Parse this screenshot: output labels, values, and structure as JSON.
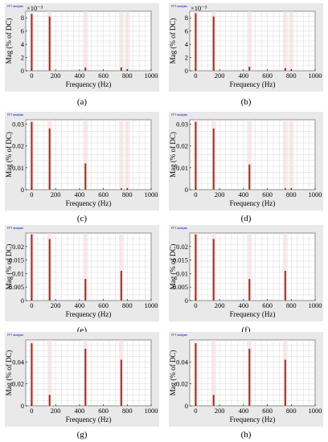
{
  "panel_title": "FFT analysis",
  "chart_data": [
    {
      "type": "bar",
      "caption": "(a)",
      "title": "",
      "xlabel": "Frequency (Hz)",
      "ylabel": "Mag (% of DC)",
      "xlim": [
        -50,
        1000
      ],
      "ylim": [
        0,
        0.009
      ],
      "y_exponent": "×10⁻³",
      "xticks": [
        0,
        200,
        400,
        600,
        800,
        1000
      ],
      "yticks": [
        {
          "v": 0,
          "label": "0"
        },
        {
          "v": 0.002,
          "label": "2"
        },
        {
          "v": 0.004,
          "label": "4"
        },
        {
          "v": 0.006,
          "label": "6"
        },
        {
          "v": 0.008,
          "label": "8"
        }
      ],
      "grid": true,
      "bar_color": "#a52a1a",
      "x": [
        0,
        150,
        450,
        750,
        800
      ],
      "values": [
        0.0086,
        0.0082,
        0.0005,
        0.0005,
        0.0002
      ]
    },
    {
      "type": "bar",
      "caption": "(b)",
      "title": "",
      "xlabel": "Frequency (Hz)",
      "ylabel": "Mag (% of DC)",
      "xlim": [
        -50,
        1000
      ],
      "ylim": [
        0,
        0.009
      ],
      "y_exponent": "×10⁻³",
      "xticks": [
        0,
        200,
        400,
        600,
        800,
        1000
      ],
      "yticks": [
        {
          "v": 0,
          "label": "0"
        },
        {
          "v": 0.002,
          "label": "2"
        },
        {
          "v": 0.004,
          "label": "4"
        },
        {
          "v": 0.006,
          "label": "6"
        },
        {
          "v": 0.008,
          "label": "8"
        }
      ],
      "grid": true,
      "bar_color": "#a52a1a",
      "x": [
        0,
        150,
        450,
        750,
        800
      ],
      "values": [
        0.0087,
        0.0082,
        0.0006,
        0.0004,
        0.0002
      ]
    },
    {
      "type": "bar",
      "caption": "(c)",
      "title": "",
      "xlabel": "Frequency (Hz)",
      "ylabel": "Mag (% of DC)",
      "xlim": [
        -50,
        1000
      ],
      "ylim": [
        0,
        0.032
      ],
      "xticks": [
        0,
        200,
        400,
        600,
        800,
        1000
      ],
      "yticks": [
        {
          "v": 0,
          "label": "0"
        },
        {
          "v": 0.01,
          "label": "0.01"
        },
        {
          "v": 0.02,
          "label": "0.02"
        },
        {
          "v": 0.03,
          "label": "0.03"
        }
      ],
      "grid": true,
      "bar_color": "#a52a1a",
      "x": [
        0,
        150,
        450,
        750,
        800
      ],
      "values": [
        0.031,
        0.028,
        0.012,
        0.0006,
        0.0005
      ]
    },
    {
      "type": "bar",
      "caption": "(d)",
      "title": "",
      "xlabel": "Frequency (Hz)",
      "ylabel": "Mag (% of DC)",
      "xlim": [
        -50,
        1000
      ],
      "ylim": [
        0,
        0.032
      ],
      "xticks": [
        0,
        200,
        400,
        600,
        800,
        1000
      ],
      "yticks": [
        {
          "v": 0,
          "label": "0"
        },
        {
          "v": 0.01,
          "label": "0.01"
        },
        {
          "v": 0.02,
          "label": "0.02"
        },
        {
          "v": 0.03,
          "label": "0.03"
        }
      ],
      "grid": true,
      "bar_color": "#a52a1a",
      "x": [
        0,
        150,
        450,
        750,
        800
      ],
      "values": [
        0.031,
        0.028,
        0.0115,
        0.0006,
        0.0005
      ]
    },
    {
      "type": "bar",
      "caption": "(e)",
      "title": "",
      "xlabel": "Frequency (Hz)",
      "ylabel": "Mag (% of DC)",
      "xlim": [
        -50,
        1000
      ],
      "ylim": [
        0,
        0.025
      ],
      "xticks": [
        0,
        200,
        400,
        600,
        800,
        1000
      ],
      "yticks": [
        {
          "v": 0,
          "label": "0"
        },
        {
          "v": 0.005,
          "label": "0.005"
        },
        {
          "v": 0.01,
          "label": "0.01"
        },
        {
          "v": 0.015,
          "label": "0.015"
        },
        {
          "v": 0.02,
          "label": "0.02"
        }
      ],
      "grid": true,
      "bar_color": "#a52a1a",
      "x": [
        0,
        150,
        450,
        750
      ],
      "values": [
        0.0245,
        0.0228,
        0.008,
        0.011
      ]
    },
    {
      "type": "bar",
      "caption": "(f)",
      "title": "",
      "xlabel": "Frequency (Hz)",
      "ylabel": "Mag (% of DC)",
      "xlim": [
        -50,
        1000
      ],
      "ylim": [
        0,
        0.025
      ],
      "xticks": [
        0,
        200,
        400,
        600,
        800,
        1000
      ],
      "yticks": [
        {
          "v": 0,
          "label": "0"
        },
        {
          "v": 0.005,
          "label": "0.005"
        },
        {
          "v": 0.01,
          "label": "0.01"
        },
        {
          "v": 0.015,
          "label": "0.015"
        },
        {
          "v": 0.02,
          "label": "0.02"
        }
      ],
      "grid": true,
      "bar_color": "#a52a1a",
      "x": [
        0,
        150,
        450,
        750
      ],
      "values": [
        0.0245,
        0.0228,
        0.008,
        0.011
      ]
    },
    {
      "type": "bar",
      "caption": "(g)",
      "title": "",
      "xlabel": "Frequency (Hz)",
      "ylabel": "Mag (% of DC)",
      "xlim": [
        -50,
        1000
      ],
      "ylim": [
        0,
        0.06
      ],
      "xticks": [
        0,
        200,
        400,
        600,
        800,
        1000
      ],
      "yticks": [
        {
          "v": 0,
          "label": "0"
        },
        {
          "v": 0.02,
          "label": "0.02"
        },
        {
          "v": 0.04,
          "label": "0.04"
        }
      ],
      "grid": true,
      "bar_color": "#a52a1a",
      "x": [
        0,
        150,
        450,
        750
      ],
      "values": [
        0.057,
        0.01,
        0.052,
        0.042
      ]
    },
    {
      "type": "bar",
      "caption": "(h)",
      "title": "",
      "xlabel": "Frequency (Hz)",
      "ylabel": "Mag (% of DC)",
      "xlim": [
        -50,
        1000
      ],
      "ylim": [
        0,
        0.06
      ],
      "xticks": [
        0,
        200,
        400,
        600,
        800,
        1000
      ],
      "yticks": [
        {
          "v": 0,
          "label": "0"
        },
        {
          "v": 0.02,
          "label": "0.02"
        },
        {
          "v": 0.04,
          "label": "0.04"
        }
      ],
      "grid": true,
      "bar_color": "#a52a1a",
      "x": [
        0,
        150,
        450,
        750
      ],
      "values": [
        0.057,
        0.01,
        0.052,
        0.042
      ]
    }
  ]
}
